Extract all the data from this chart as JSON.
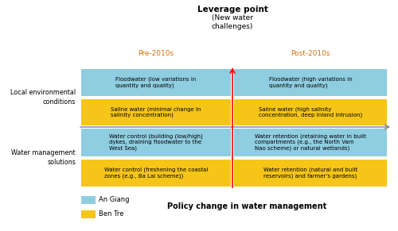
{
  "title_top": "Leverage point",
  "title_top_sub": "(New water\nchallenges)",
  "title_bottom": "Policy change in water management",
  "label_pre": "Pre-2010s",
  "label_post": "Post-2010s",
  "label_left_top": "Local environmental\nconditions",
  "label_left_bottom": "Water management\nsolutions",
  "color_blue": "#8FCDE0",
  "color_yellow": "#F5C518",
  "color_orange": "#D4700A",
  "boxes": [
    {
      "text": "Floodwater (low variations in\nquantity and quality)",
      "col": 0,
      "row": 0,
      "color": "#8FCDE0"
    },
    {
      "text": "Saline water (minimal change in\nsalinity concentration)",
      "col": 0,
      "row": 1,
      "color": "#F5C518"
    },
    {
      "text": "Floodwater (high variations in\nquantity and quality)",
      "col": 1,
      "row": 0,
      "color": "#8FCDE0"
    },
    {
      "text": "Saline water (high salinity\nconcentration, deep inland intrusion)",
      "col": 1,
      "row": 1,
      "color": "#F5C518"
    },
    {
      "text": "Water control (building (low/high)\ndykes, draining floodwater to the\nWest Sea)",
      "col": 0,
      "row": 2,
      "color": "#8FCDE0"
    },
    {
      "text": "Water control (freshening the coastal\nzones (e.g., Ba Lai scheme))",
      "col": 0,
      "row": 3,
      "color": "#F5C518"
    },
    {
      "text": "Water retention (retaining water in built\ncompartments (e.g., the North Vam\nNao scheme) or natural wetlands)",
      "col": 1,
      "row": 2,
      "color": "#8FCDE0"
    },
    {
      "text": "Water retention (natural and built\nreservoirs) and farmer’s gardens)",
      "col": 1,
      "row": 3,
      "color": "#F5C518"
    }
  ],
  "legend": [
    {
      "label": "An Giang",
      "color": "#8FCDE0"
    },
    {
      "label": "Ben Tre",
      "color": "#F5C518"
    }
  ],
  "figsize": [
    5.0,
    2.91
  ],
  "dpi": 100
}
